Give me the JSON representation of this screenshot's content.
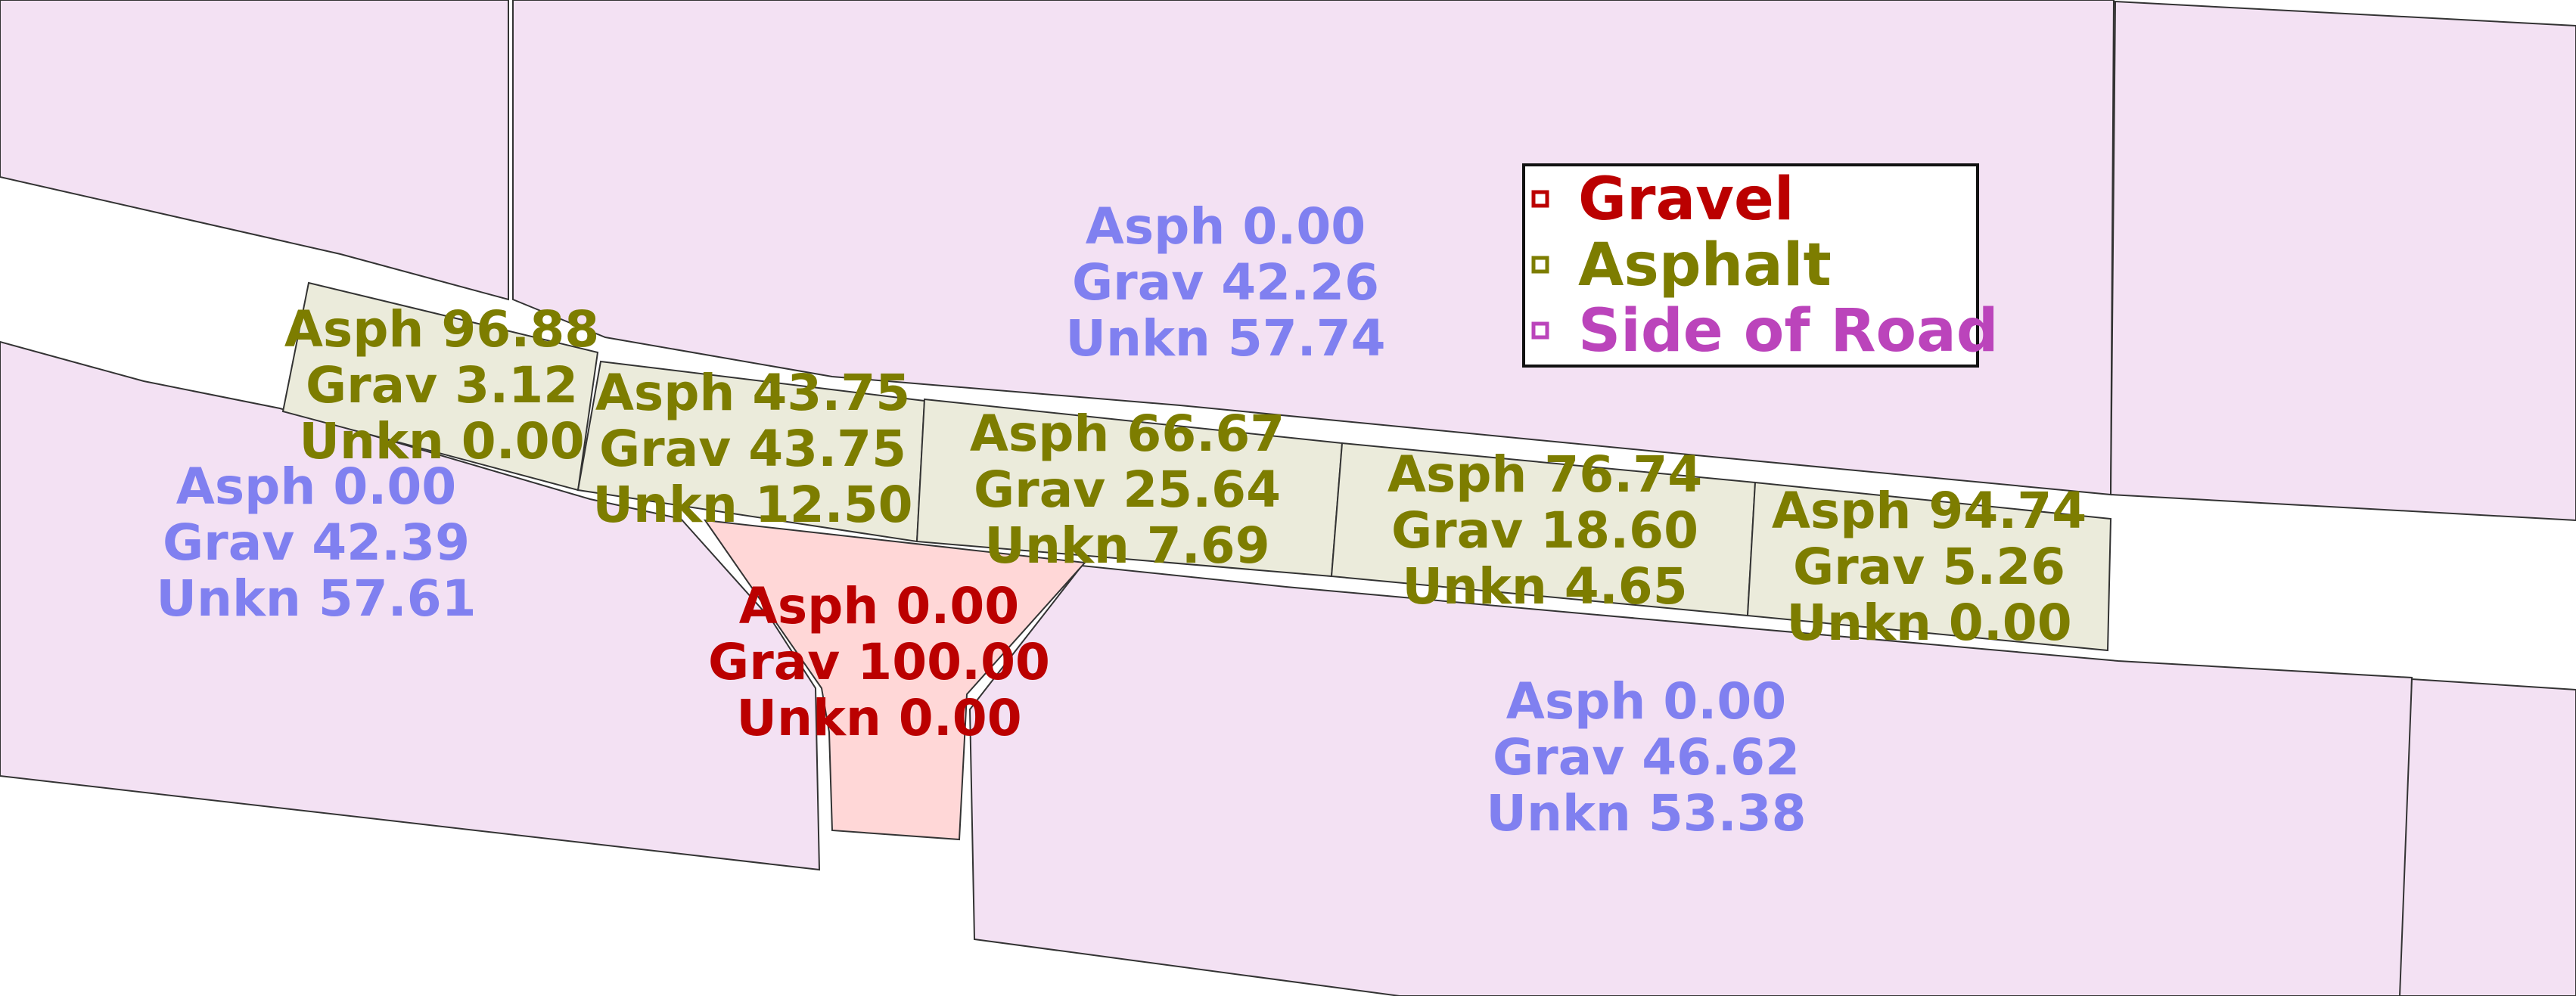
{
  "colors": {
    "gravel": "#bb0000",
    "asphalt": "#7d7d00",
    "side_of_road": "#bb44bb",
    "side_of_road_fill": "#f3e1f3",
    "asphalt_fill": "#ebebdb",
    "gravel_fill": "#ffd7d7",
    "side_of_road_text": "#8080f0",
    "outline": "#333333"
  },
  "legend": {
    "items": [
      {
        "label": "Gravel",
        "color": "#bb0000"
      },
      {
        "label": "Asphalt",
        "color": "#7d7d00"
      },
      {
        "label": "Side of Road",
        "color": "#bb44bb"
      }
    ]
  },
  "labels": {
    "side_top_center": [
      "Asph 0.00",
      "Grav 42.26",
      "Unkn 57.74"
    ],
    "side_left": [
      "Asph 0.00",
      "Grav 42.39",
      "Unkn 57.61"
    ],
    "side_bottom": [
      "Asph 0.00",
      "Grav 46.62",
      "Unkn 53.38"
    ],
    "road_seg_1": [
      "Asph 96.88",
      "Grav 3.12",
      "Unkn 0.00"
    ],
    "road_seg_2": [
      "Asph 43.75",
      "Grav 43.75",
      "Unkn 12.50"
    ],
    "road_seg_3": [
      "Asph 66.67",
      "Grav 25.64",
      "Unkn 7.69"
    ],
    "road_seg_4": [
      "Asph 76.74",
      "Grav 18.60",
      "Unkn 4.65"
    ],
    "road_seg_5": [
      "Asph 94.74",
      "Grav 5.26",
      "Unkn 0.00"
    ],
    "gravel_spur": [
      "Asph 0.00",
      "Grav 100.00",
      "Unkn 0.00"
    ]
  }
}
